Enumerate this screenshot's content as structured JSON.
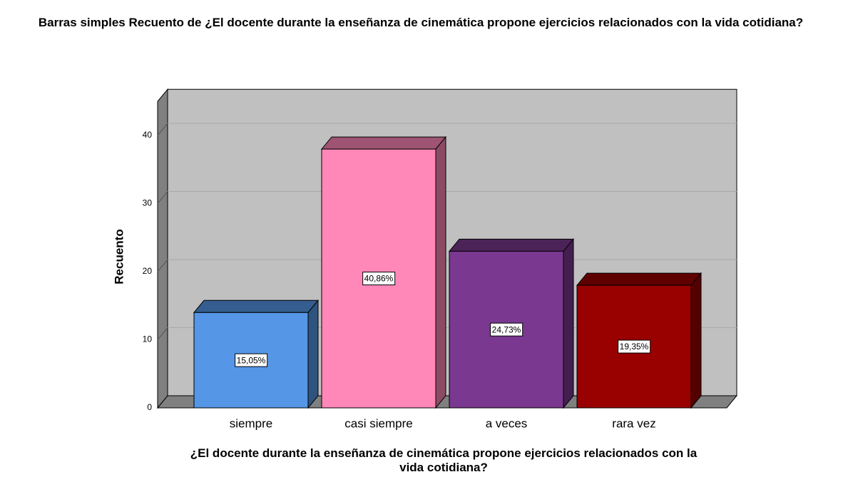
{
  "chart_data": {
    "type": "bar3d",
    "title": "Barras simples Recuento de ¿El docente durante la enseñanza de cinemática propone ejercicios relacionados con la vida cotidiana?",
    "categories": [
      "siempre",
      "casi siempre",
      "a veces",
      "rara vez"
    ],
    "values": [
      14,
      38,
      23,
      18
    ],
    "data_labels": [
      "15,05%",
      "40,86%",
      "24,73%",
      "19,35%"
    ],
    "colors": [
      "#5596e6",
      "#ff88b8",
      "#7a3890",
      "#990000"
    ],
    "y_label": "Recuento",
    "x_label": "¿El docente durante la enseñanza de cinemática propone ejercicios relacionados con la vida cotidiana?",
    "ylim": [
      0,
      45
    ],
    "yticks": [
      0,
      10,
      20,
      30,
      40
    ],
    "grid": true
  }
}
